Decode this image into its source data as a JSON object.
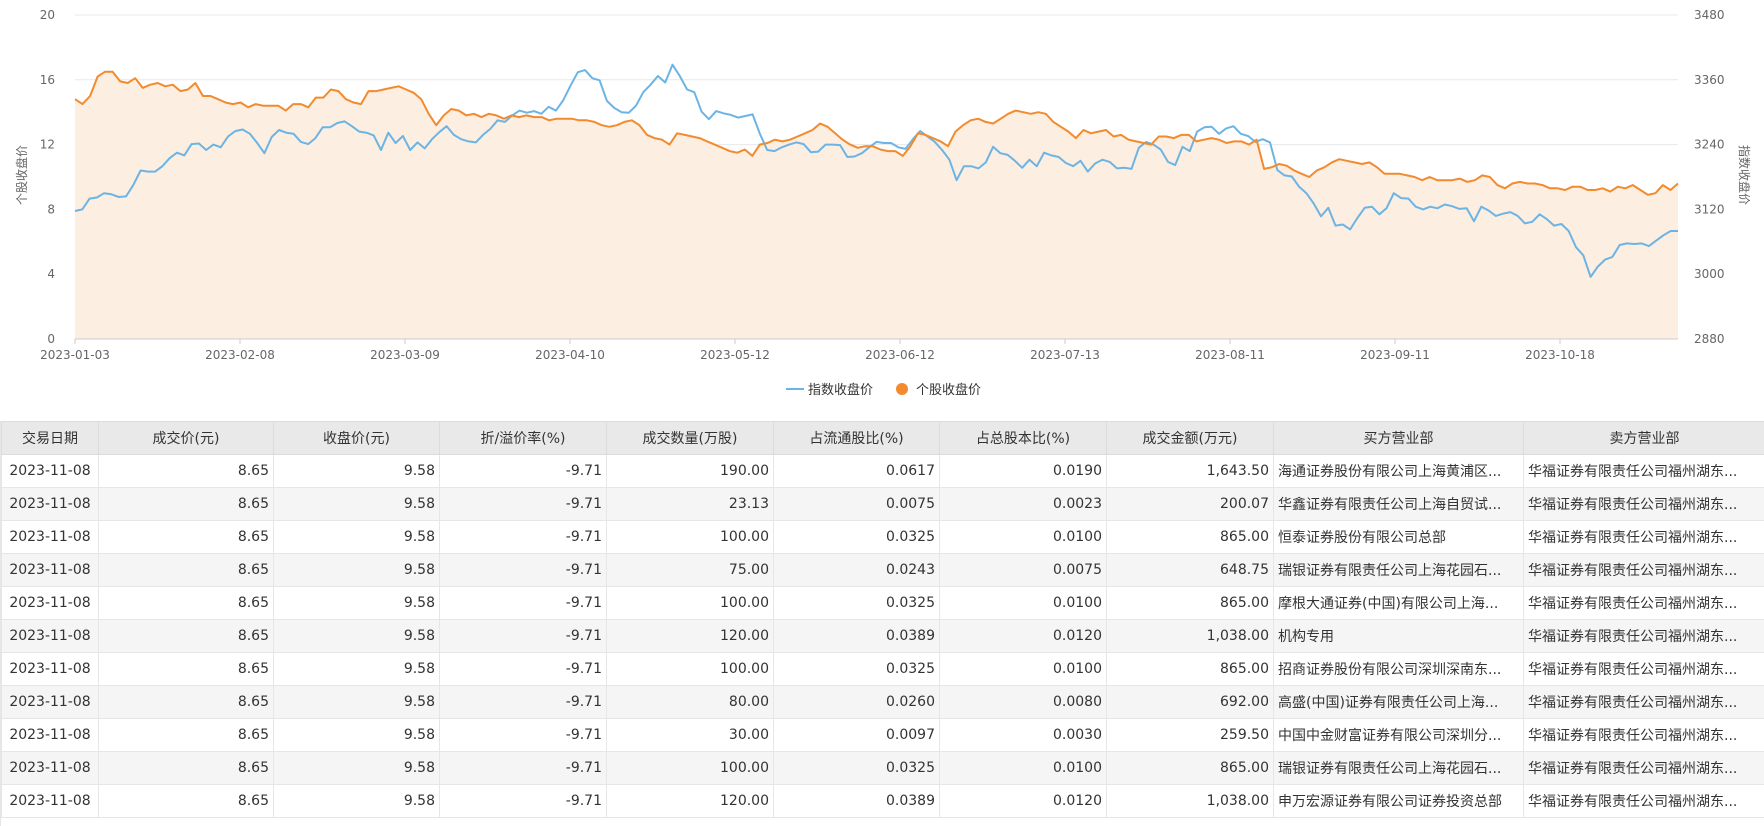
{
  "chart_data": {
    "type": "line",
    "title": "",
    "ylabel_left": "个股收盘价",
    "ylabel_right": "指数收盘价",
    "ylim_left": [
      0,
      20
    ],
    "ylim_right": [
      2880,
      3480
    ],
    "y_ticks_left": [
      "0",
      "4",
      "8",
      "12",
      "16",
      "20"
    ],
    "y_ticks_right": [
      "2880",
      "3000",
      "3120",
      "3240",
      "3360",
      "3480"
    ],
    "x_tick_labels": [
      "2023-01-03",
      "2023-02-08",
      "2023-03-09",
      "2023-04-10",
      "2023-05-12",
      "2023-06-12",
      "2023-07-13",
      "2023-08-11",
      "2023-09-11",
      "2023-10-18"
    ],
    "legend_position": "bottom-center",
    "grid": true,
    "colors": {
      "index": "#6cb4e4",
      "stock": "#f28a2e",
      "stock_fill": "#fdeee2"
    },
    "series": [
      {
        "name": "指数收盘价",
        "axis": "right",
        "values": [
          3117,
          3120,
          3140,
          3142,
          3150,
          3148,
          3143,
          3144,
          3165,
          3192,
          3190,
          3190,
          3200,
          3215,
          3225,
          3220,
          3241,
          3242,
          3230,
          3240,
          3235,
          3255,
          3265,
          3268,
          3260,
          3243,
          3224,
          3254,
          3267,
          3262,
          3260,
          3245,
          3241,
          3252,
          3272,
          3272,
          3280,
          3283,
          3274,
          3264,
          3262,
          3257,
          3230,
          3262,
          3243,
          3256,
          3230,
          3244,
          3233,
          3250,
          3263,
          3274,
          3258,
          3250,
          3246,
          3244,
          3258,
          3269,
          3285,
          3282,
          3294,
          3303,
          3299,
          3302,
          3297,
          3310,
          3303,
          3322,
          3349,
          3374,
          3378,
          3363,
          3359,
          3321,
          3308,
          3300,
          3299,
          3312,
          3337,
          3351,
          3367,
          3355,
          3388,
          3367,
          3342,
          3337,
          3301,
          3287,
          3302,
          3298,
          3295,
          3290,
          3293,
          3296,
          3260,
          3230,
          3228,
          3235,
          3240,
          3244,
          3241,
          3226,
          3227,
          3240,
          3240,
          3239,
          3217,
          3218,
          3224,
          3235,
          3245,
          3243,
          3243,
          3235,
          3232,
          3250,
          3265,
          3255,
          3245,
          3230,
          3212,
          3174,
          3200,
          3200,
          3196,
          3207,
          3236,
          3224,
          3221,
          3210,
          3197,
          3212,
          3200,
          3225,
          3220,
          3217,
          3206,
          3200,
          3210,
          3190,
          3205,
          3212,
          3208,
          3196,
          3197,
          3195,
          3234,
          3245,
          3240,
          3231,
          3208,
          3202,
          3236,
          3228,
          3264,
          3272,
          3273,
          3260,
          3270,
          3274,
          3260,
          3256,
          3245,
          3250,
          3244,
          3193,
          3183,
          3181,
          3162,
          3150,
          3131,
          3107,
          3123,
          3090,
          3092,
          3083,
          3104,
          3123,
          3125,
          3111,
          3122,
          3150,
          3141,
          3140,
          3125,
          3120,
          3125,
          3122,
          3129,
          3126,
          3121,
          3122,
          3098,
          3125,
          3118,
          3108,
          3112,
          3115,
          3108,
          3094,
          3097,
          3111,
          3102,
          3090,
          3093,
          3080,
          3050,
          3035,
          2995,
          3014,
          3027,
          3032,
          3054,
          3057,
          3056,
          3057,
          3052,
          3062,
          3072,
          3080,
          3080
        ]
      },
      {
        "name": "个股收盘价",
        "axis": "left",
        "values": [
          14.8,
          14.5,
          15.0,
          16.2,
          16.5,
          16.5,
          15.9,
          15.8,
          16.1,
          15.5,
          15.7,
          15.8,
          15.6,
          15.7,
          15.3,
          15.4,
          15.8,
          15.0,
          15.0,
          14.8,
          14.6,
          14.5,
          14.6,
          14.3,
          14.5,
          14.4,
          14.4,
          14.4,
          14.1,
          14.5,
          14.5,
          14.3,
          14.9,
          14.9,
          15.4,
          15.3,
          14.8,
          14.6,
          14.5,
          15.3,
          15.3,
          15.4,
          15.5,
          15.6,
          15.4,
          15.2,
          14.8,
          13.9,
          13.2,
          13.8,
          14.2,
          14.1,
          13.8,
          13.9,
          13.7,
          13.9,
          13.8,
          13.6,
          13.8,
          13.7,
          13.8,
          13.7,
          13.7,
          13.5,
          13.6,
          13.6,
          13.6,
          13.5,
          13.5,
          13.4,
          13.2,
          13.1,
          13.2,
          13.4,
          13.5,
          13.2,
          12.6,
          12.4,
          12.3,
          12.0,
          12.7,
          12.6,
          12.5,
          12.4,
          12.2,
          12.0,
          11.8,
          11.6,
          11.5,
          11.7,
          11.3,
          12.0,
          12.1,
          12.3,
          12.2,
          12.3,
          12.5,
          12.7,
          12.9,
          13.3,
          13.1,
          12.7,
          12.3,
          12.0,
          11.8,
          11.9,
          11.9,
          11.7,
          11.6,
          11.6,
          11.3,
          11.9,
          12.7,
          12.6,
          12.4,
          12.2,
          11.9,
          12.8,
          13.2,
          13.5,
          13.6,
          13.4,
          13.3,
          13.6,
          13.9,
          14.1,
          14.0,
          13.9,
          14.0,
          13.9,
          13.4,
          13.1,
          12.8,
          12.4,
          12.9,
          12.7,
          12.8,
          12.9,
          12.5,
          12.6,
          12.3,
          12.2,
          12.1,
          12.0,
          12.5,
          12.5,
          12.4,
          12.6,
          12.6,
          12.2,
          12.3,
          12.4,
          12.3,
          12.1,
          12.2,
          12.2,
          12.0,
          12.3,
          10.5,
          10.6,
          10.8,
          10.7,
          10.4,
          10.2,
          10.0,
          10.4,
          10.6,
          10.9,
          11.1,
          11.0,
          10.9,
          10.8,
          10.9,
          10.6,
          10.2,
          10.2,
          10.2,
          10.1,
          10.0,
          9.8,
          10.0,
          9.8,
          9.8,
          9.8,
          9.9,
          9.7,
          9.8,
          10.1,
          10.0,
          9.5,
          9.3,
          9.6,
          9.7,
          9.6,
          9.6,
          9.5,
          9.3,
          9.3,
          9.2,
          9.4,
          9.4,
          9.2,
          9.2,
          9.3,
          9.1,
          9.4,
          9.3,
          9.5,
          9.2,
          8.9,
          9.0,
          9.5,
          9.2,
          9.6
        ]
      }
    ]
  },
  "legend": {
    "index_label": "指数收盘价",
    "stock_label": "个股收盘价"
  },
  "table": {
    "headers": [
      "交易日期",
      "成交价(元)",
      "收盘价(元)",
      "折/溢价率(%)",
      "成交数量(万股)",
      "占流通股比(%)",
      "占总股本比(%)",
      "成交金额(万元)",
      "买方营业部",
      "卖方营业部"
    ],
    "rows": [
      [
        "2023-11-08",
        "8.65",
        "9.58",
        "-9.71",
        "190.00",
        "0.0617",
        "0.0190",
        "1,643.50",
        "海通证券股份有限公司上海黄浦区...",
        "华福证券有限责任公司福州湖东..."
      ],
      [
        "2023-11-08",
        "8.65",
        "9.58",
        "-9.71",
        "23.13",
        "0.0075",
        "0.0023",
        "200.07",
        "华鑫证券有限责任公司上海自贸试...",
        "华福证券有限责任公司福州湖东..."
      ],
      [
        "2023-11-08",
        "8.65",
        "9.58",
        "-9.71",
        "100.00",
        "0.0325",
        "0.0100",
        "865.00",
        "恒泰证券股份有限公司总部",
        "华福证券有限责任公司福州湖东..."
      ],
      [
        "2023-11-08",
        "8.65",
        "9.58",
        "-9.71",
        "75.00",
        "0.0243",
        "0.0075",
        "648.75",
        "瑞银证券有限责任公司上海花园石...",
        "华福证券有限责任公司福州湖东..."
      ],
      [
        "2023-11-08",
        "8.65",
        "9.58",
        "-9.71",
        "100.00",
        "0.0325",
        "0.0100",
        "865.00",
        "摩根大通证券(中国)有限公司上海...",
        "华福证券有限责任公司福州湖东..."
      ],
      [
        "2023-11-08",
        "8.65",
        "9.58",
        "-9.71",
        "120.00",
        "0.0389",
        "0.0120",
        "1,038.00",
        "机构专用",
        "华福证券有限责任公司福州湖东..."
      ],
      [
        "2023-11-08",
        "8.65",
        "9.58",
        "-9.71",
        "100.00",
        "0.0325",
        "0.0100",
        "865.00",
        "招商证券股份有限公司深圳深南东...",
        "华福证券有限责任公司福州湖东..."
      ],
      [
        "2023-11-08",
        "8.65",
        "9.58",
        "-9.71",
        "80.00",
        "0.0260",
        "0.0080",
        "692.00",
        "高盛(中国)证券有限责任公司上海...",
        "华福证券有限责任公司福州湖东..."
      ],
      [
        "2023-11-08",
        "8.65",
        "9.58",
        "-9.71",
        "30.00",
        "0.0097",
        "0.0030",
        "259.50",
        "中国中金财富证券有限公司深圳分...",
        "华福证券有限责任公司福州湖东..."
      ],
      [
        "2023-11-08",
        "8.65",
        "9.58",
        "-9.71",
        "100.00",
        "0.0325",
        "0.0100",
        "865.00",
        "瑞银证券有限责任公司上海花园石...",
        "华福证券有限责任公司福州湖东..."
      ],
      [
        "2023-11-08",
        "8.65",
        "9.58",
        "-9.71",
        "120.00",
        "0.0389",
        "0.0120",
        "1,038.00",
        "申万宏源证券有限公司证券投资总部",
        "华福证券有限责任公司福州湖东..."
      ]
    ]
  }
}
